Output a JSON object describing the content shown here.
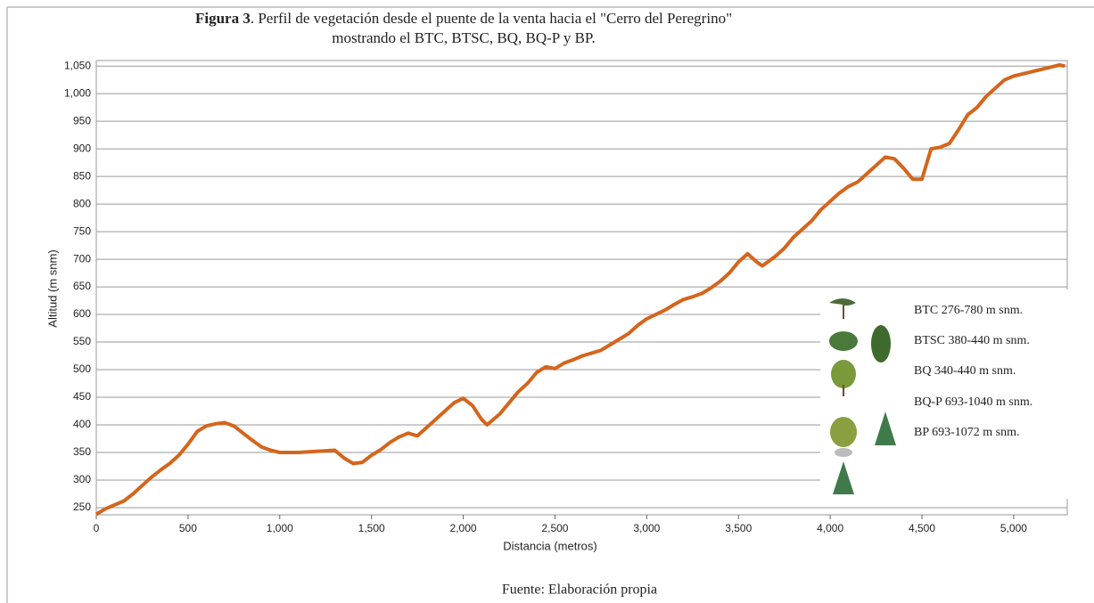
{
  "chart_data": {
    "type": "line",
    "title": "Figura 3",
    "title_rest": ". Perfil de vegetación desde el puente de la venta hacia el \"Cerro del Peregrino\"",
    "subtitle": "mostrando el BTC, BTSC, BQ, BQ-P  y BP.",
    "x_label": "Distancia (metros)",
    "y_label": "Altitud (m snm)",
    "source": "Fuente: Elaboración propia",
    "color": "#d4651c",
    "grid": true,
    "x": [
      0,
      50,
      100,
      150,
      200,
      250,
      300,
      350,
      400,
      450,
      500,
      550,
      600,
      650,
      700,
      750,
      800,
      850,
      900,
      950,
      1000,
      1100,
      1200,
      1300,
      1350,
      1400,
      1450,
      1500,
      1550,
      1600,
      1650,
      1700,
      1750,
      1800,
      1850,
      1900,
      1950,
      2000,
      2050,
      2100,
      2130,
      2200,
      2250,
      2300,
      2350,
      2400,
      2450,
      2500,
      2550,
      2600,
      2650,
      2700,
      2750,
      2800,
      2850,
      2900,
      2950,
      3000,
      3050,
      3100,
      3150,
      3200,
      3250,
      3300,
      3350,
      3400,
      3450,
      3500,
      3550,
      3600,
      3630,
      3700,
      3750,
      3800,
      3850,
      3900,
      3950,
      4000,
      4050,
      4100,
      4150,
      4200,
      4250,
      4300,
      4350,
      4400,
      4450,
      4500,
      4550,
      4600,
      4650,
      4700,
      4750,
      4800,
      4850,
      4900,
      4950,
      5000,
      5100,
      5200,
      5250,
      5280
    ],
    "values": [
      238,
      248,
      255,
      262,
      275,
      290,
      305,
      318,
      330,
      345,
      365,
      388,
      398,
      402,
      404,
      398,
      385,
      372,
      360,
      354,
      350,
      350,
      352,
      354,
      340,
      330,
      332,
      345,
      355,
      368,
      378,
      385,
      380,
      395,
      410,
      425,
      440,
      448,
      435,
      410,
      400,
      420,
      440,
      460,
      475,
      495,
      505,
      502,
      512,
      518,
      525,
      530,
      535,
      545,
      555,
      565,
      580,
      592,
      600,
      608,
      618,
      627,
      632,
      638,
      648,
      660,
      675,
      695,
      710,
      695,
      688,
      705,
      720,
      740,
      755,
      770,
      790,
      805,
      820,
      832,
      840,
      855,
      870,
      885,
      882,
      865,
      845,
      845,
      900,
      903,
      910,
      935,
      962,
      975,
      995,
      1010,
      1025,
      1032,
      1040,
      1048,
      1052,
      1050
    ],
    "xlim": [
      0,
      5292
    ],
    "ylim": [
      237,
      1060
    ],
    "xticks": [
      0,
      500,
      {
        "value": 1000,
        "label": "1,000"
      },
      {
        "value": 1500,
        "label": "1,500"
      },
      {
        "value": 2000,
        "label": "2,000"
      },
      {
        "value": 2500,
        "label": "2,500"
      },
      {
        "value": 3000,
        "label": "3,000"
      },
      {
        "value": 3500,
        "label": "3,500"
      },
      {
        "value": 4000,
        "label": "4,000"
      },
      {
        "value": 4500,
        "label": "4,500"
      },
      {
        "value": 5000,
        "label": "5,000"
      }
    ],
    "yticks": [
      250,
      300,
      350,
      400,
      450,
      500,
      550,
      600,
      650,
      700,
      750,
      800,
      850,
      900,
      950,
      {
        "value": 1000,
        "label": "1,000"
      },
      {
        "value": 1050,
        "label": "1,050"
      }
    ],
    "legend": [
      "BTC 276-780 m snm.",
      "BTSC 380-440 m snm.",
      "BQ 340-440 m snm.",
      "BQ-P 693-1040 m snm.",
      "BP 693-1072 m snm."
    ]
  }
}
